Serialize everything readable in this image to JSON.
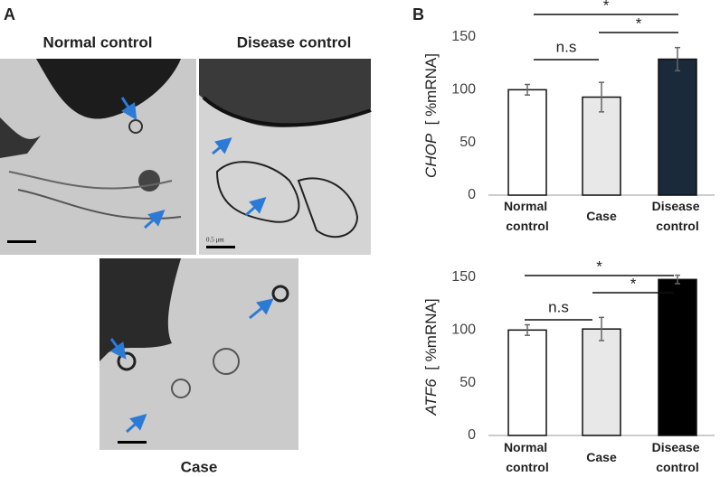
{
  "panel_a": {
    "label": "A",
    "images": [
      {
        "title": "Normal control"
      },
      {
        "title": "Disease control"
      },
      {
        "title": "Case"
      }
    ],
    "scale_bar": "0.5 μm"
  },
  "panel_b": {
    "label": "B"
  },
  "chart_data": [
    {
      "type": "bar",
      "ylabel_gene": "CHOP",
      "ylabel_unit": "[ %mRNA]",
      "categories": [
        "Normal control",
        "Case",
        "Disease control"
      ],
      "values": [
        100,
        93,
        129
      ],
      "errors": [
        5,
        14,
        11
      ],
      "colors": [
        "#ffffff",
        "#e8e8e8",
        "#1b2a3a"
      ],
      "ylim": [
        0,
        150
      ],
      "yticks": [
        0,
        50,
        100,
        150
      ],
      "annotations": [
        "n.s",
        "*",
        "*"
      ]
    },
    {
      "type": "bar",
      "ylabel_gene": "ATF6",
      "ylabel_unit": "[ %mRNA]",
      "categories": [
        "Normal control",
        "Case",
        "Disease control"
      ],
      "values": [
        100,
        101,
        148
      ],
      "errors": [
        5,
        11,
        4
      ],
      "colors": [
        "#ffffff",
        "#e8e8e8",
        "#000000"
      ],
      "ylim": [
        0,
        150
      ],
      "yticks": [
        0,
        50,
        100,
        150
      ],
      "annotations": [
        "n.s",
        "*",
        "*"
      ]
    }
  ]
}
